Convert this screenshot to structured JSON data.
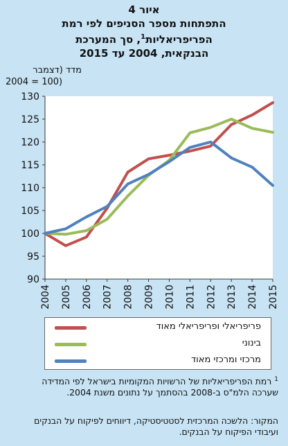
{
  "header": {
    "figure_label": "איור 4",
    "title_line1": "התפתחות מספר הסניפים לפי רמת",
    "title_line2a": "הפריפריאליות",
    "title_sup": "1",
    "title_line2b": ", סך המערכת",
    "title_line3": "הבנקאית, 2004 עד 2015"
  },
  "yaxis_label": {
    "line1": "מדד (דצמבר",
    "line2": "2004 = 100)"
  },
  "legend": [
    {
      "label": "פריפריאלי ופריפריאלי מאוד",
      "color": "#c0504d"
    },
    {
      "label": "בינוני",
      "color": "#9bbb59"
    },
    {
      "label": "מרכזי ומרכזי מאוד",
      "color": "#4f81bd"
    }
  ],
  "footnote": {
    "number": "1",
    "text": "רמת הפריפריאליות של הרשויות המקומיות בישראל לפי המדידה שערכה הלמ\"ס ב-2008 בהסתמך על נתונים משנת 2004."
  },
  "source": "המקור: הלשכה המרכזית לסטטיסטיקה, דיווחים לפיקוח על הבנקים ועיבודי הפיקוח על הבנקים.",
  "chart_data": {
    "type": "line",
    "x": [
      "2004",
      "2005",
      "2006",
      "2007",
      "2008",
      "2009",
      "2010",
      "2011",
      "2012",
      "2013",
      "2014",
      "2015"
    ],
    "ylim": [
      90,
      130
    ],
    "yticks": [
      90,
      95,
      100,
      105,
      110,
      115,
      120,
      125,
      130
    ],
    "grid": false,
    "legend_position": "bottom",
    "series": [
      {
        "name": "פריפריאלי ופריפריאלי מאוד",
        "color": "#c0504d",
        "values": [
          100,
          97.3,
          99.2,
          105.5,
          113.4,
          116.3,
          117.1,
          118,
          119.1,
          123.8,
          125.9,
          128.6
        ]
      },
      {
        "name": "בינוני",
        "color": "#9bbb59",
        "values": [
          100,
          99.8,
          100.6,
          103.1,
          108.2,
          112.7,
          116.0,
          122.0,
          123.2,
          125.0,
          123.0,
          122.1
        ]
      },
      {
        "name": "מרכזי ומרכזי מאוד",
        "color": "#4f81bd",
        "values": [
          100,
          101.0,
          103.6,
          105.9,
          110.8,
          112.9,
          115.7,
          118.8,
          120.0,
          116.5,
          114.5,
          110.5
        ]
      }
    ]
  }
}
